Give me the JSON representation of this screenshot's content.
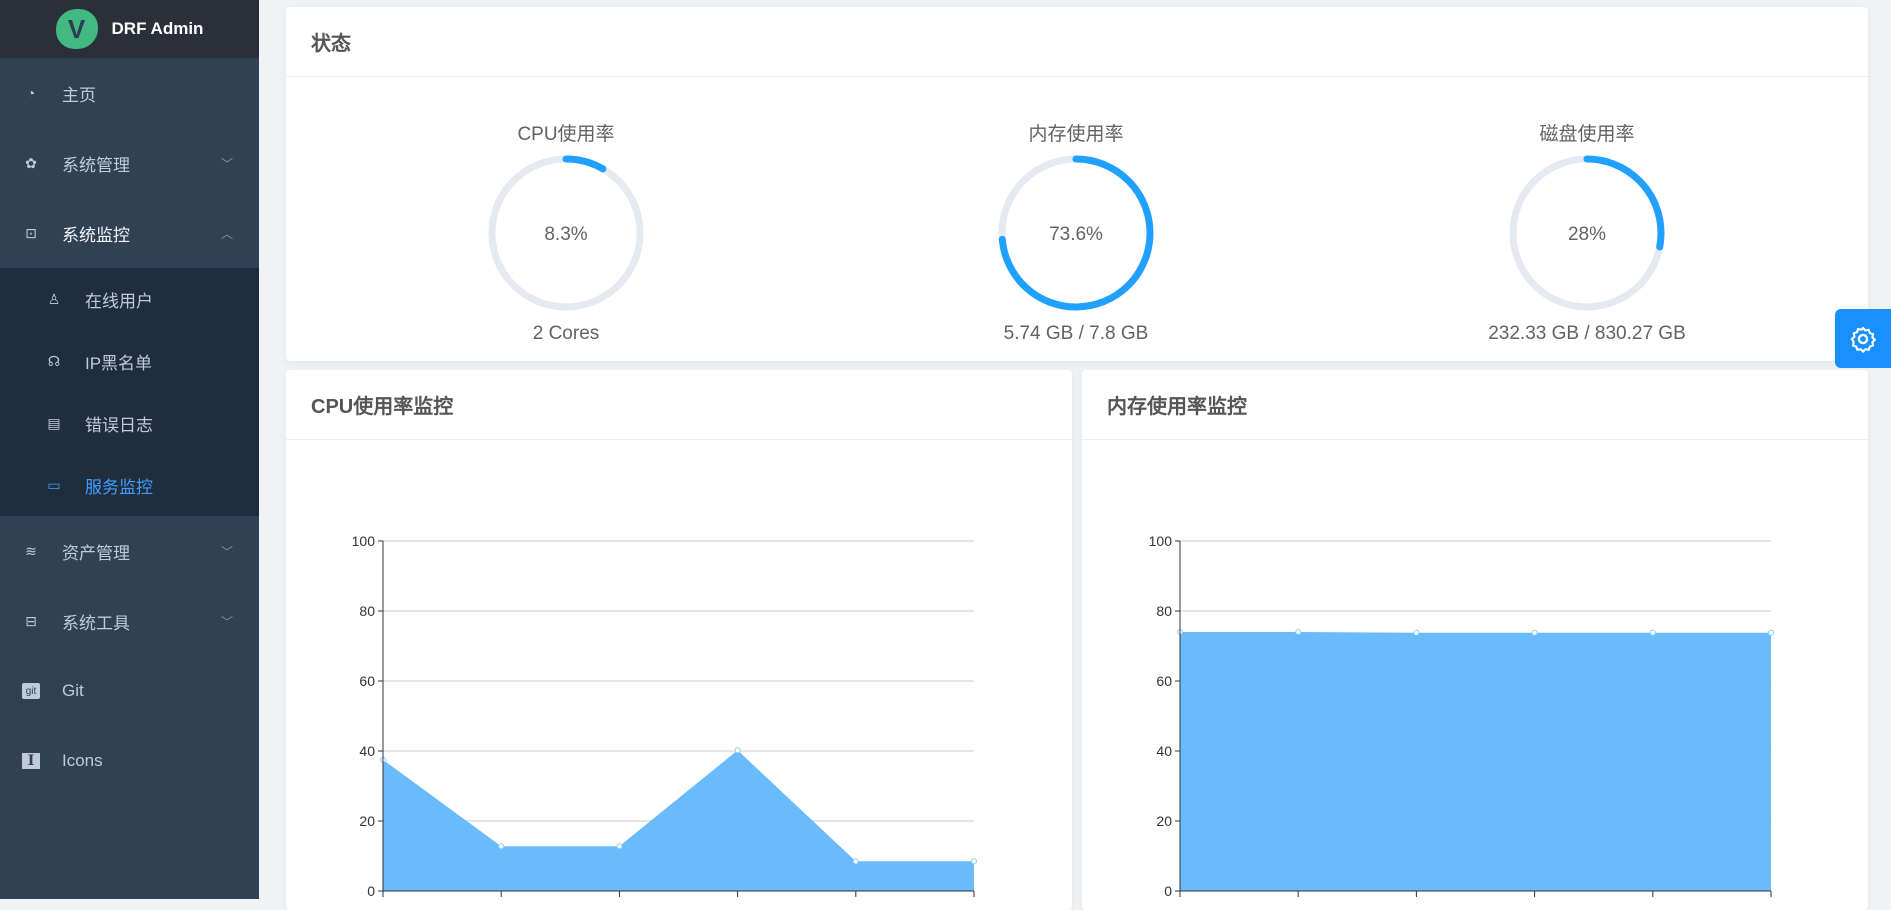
{
  "app": {
    "title": "DRF Admin",
    "logo_letter": "V"
  },
  "sidebar": {
    "items": [
      {
        "label": "主页",
        "icon": "dashboard-icon"
      },
      {
        "label": "系统管理",
        "icon": "gear-icon",
        "chevron": "down"
      },
      {
        "label": "系统监控",
        "icon": "monitor-icon",
        "chevron": "up",
        "open": true,
        "children": [
          {
            "label": "在线用户",
            "icon": "online-user-icon"
          },
          {
            "label": "IP黑名单",
            "icon": "blacklist-icon"
          },
          {
            "label": "错误日志",
            "icon": "error-log-icon"
          },
          {
            "label": "服务监控",
            "icon": "server-monitor-icon",
            "active": true
          }
        ]
      },
      {
        "label": "资产管理",
        "icon": "layers-icon",
        "chevron": "down"
      },
      {
        "label": "系统工具",
        "icon": "toolbox-icon",
        "chevron": "down"
      },
      {
        "label": "Git",
        "icon": "git-icon"
      },
      {
        "label": "Icons",
        "icon": "icons-icon"
      }
    ]
  },
  "status": {
    "title": "状态",
    "gauges": [
      {
        "label": "CPU使用率",
        "percent": 8.3,
        "value_text": "8.3%",
        "footer": "2 Cores"
      },
      {
        "label": "内存使用率",
        "percent": 73.6,
        "value_text": "73.6%",
        "footer": "5.74 GB / 7.8 GB"
      },
      {
        "label": "磁盘使用率",
        "percent": 28,
        "value_text": "28%",
        "footer": "232.33 GB / 830.27 GB"
      }
    ]
  },
  "colors": {
    "accent": "#20a0ff",
    "track": "#e5e9f2",
    "area": "#64b9fb"
  },
  "chart_data": [
    {
      "type": "area",
      "title": "CPU使用率监控",
      "ylim": [
        0,
        100
      ],
      "yticks": [
        0,
        20,
        40,
        60,
        80,
        100
      ],
      "grid": true,
      "values": [
        37.5,
        12.8,
        12.8,
        40.2,
        8.5,
        8.5
      ]
    },
    {
      "type": "area",
      "title": "内存使用率监控",
      "ylim": [
        0,
        100
      ],
      "yticks": [
        0,
        20,
        40,
        60,
        80,
        100
      ],
      "grid": true,
      "values": [
        74.0,
        74.0,
        73.8,
        73.8,
        73.8,
        73.8
      ]
    }
  ]
}
